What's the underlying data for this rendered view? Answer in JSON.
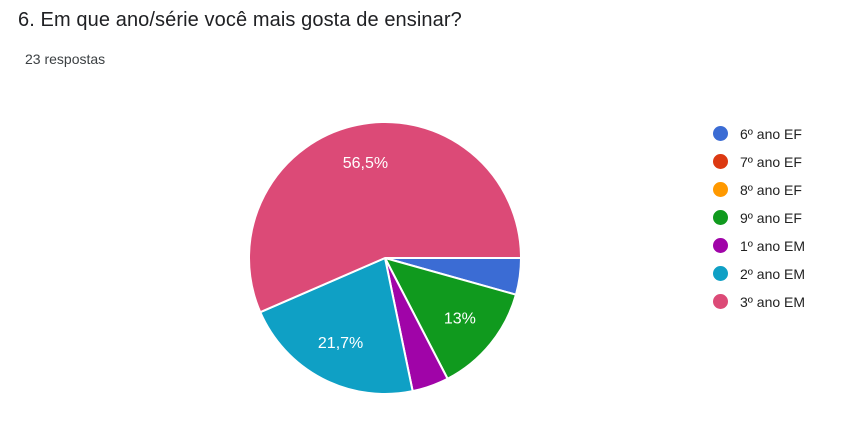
{
  "header": {
    "title": "6. Em que ano/série você mais gosta de ensinar?",
    "responses_count": "23 respostas"
  },
  "chart_data": {
    "type": "pie",
    "title": "6. Em que ano/série você mais gosta de ensinar?",
    "subtitle": "23 respostas",
    "total_responses": 23,
    "legend_position": "right",
    "start_angle_deg": 0,
    "direction": "clockwise-from-east",
    "slice_border_color": "#ffffff",
    "slice_label_color": "#ffffff",
    "slices": [
      {
        "label": "6º ano EF",
        "count": 1,
        "pct": 4.3,
        "pct_label": "",
        "color": "#3B6CD4"
      },
      {
        "label": "7º ano EF",
        "count": 0,
        "pct": 0.0,
        "pct_label": "",
        "color": "#DC3912"
      },
      {
        "label": "8º ano EF",
        "count": 0,
        "pct": 0.0,
        "pct_label": "",
        "color": "#FF9900"
      },
      {
        "label": "9º ano EF",
        "count": 3,
        "pct": 13.0,
        "pct_label": "13%",
        "color": "#109A1E"
      },
      {
        "label": "1º ano EM",
        "count": 1,
        "pct": 4.3,
        "pct_label": "",
        "color": "#A004A8"
      },
      {
        "label": "2º ano EM",
        "count": 5,
        "pct": 21.7,
        "pct_label": "21,7%",
        "color": "#0FA0C5"
      },
      {
        "label": "3º ano EM",
        "count": 13,
        "pct": 56.5,
        "pct_label": "56,5%",
        "color": "#DC4A77"
      }
    ]
  }
}
